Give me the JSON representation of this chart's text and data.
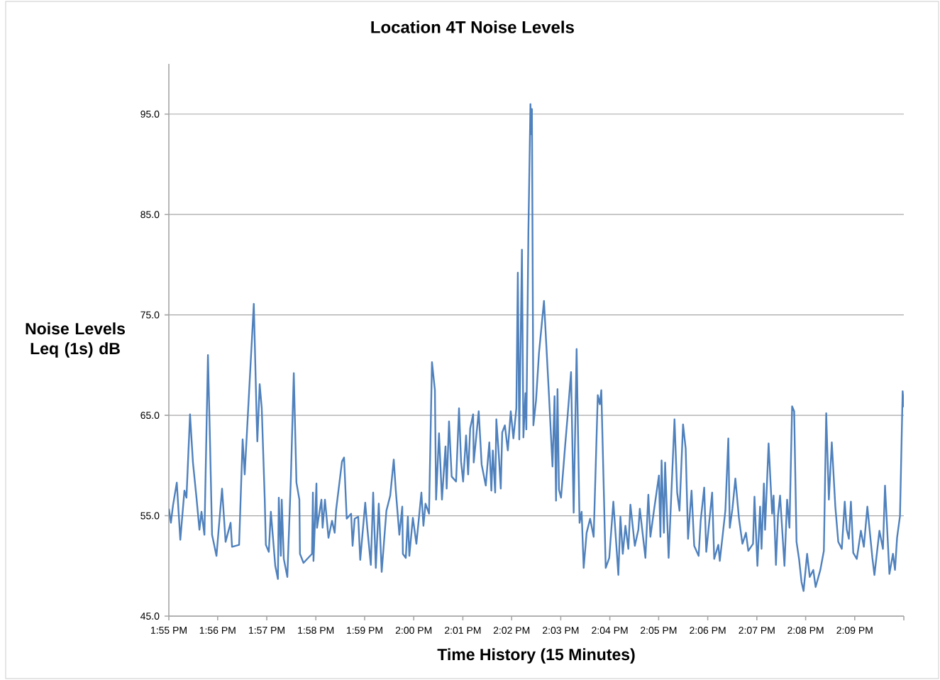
{
  "chart_data": {
    "type": "line",
    "title": "Location 4T Noise Levels",
    "xlabel": "Time History (15 Minutes)",
    "ylabel": "Noise Levels Leq (1s) dB",
    "xlim": [
      13.9167,
      14.1667
    ],
    "ylim": [
      45,
      100
    ],
    "xticks": [
      {
        "value": 13.9167,
        "label": "1:55 PM"
      },
      {
        "value": 13.9333,
        "label": "1:56 PM"
      },
      {
        "value": 13.95,
        "label": "1:57 PM"
      },
      {
        "value": 13.9667,
        "label": "1:58 PM"
      },
      {
        "value": 13.9833,
        "label": "1:59 PM"
      },
      {
        "value": 14.0,
        "label": "2:00 PM"
      },
      {
        "value": 14.0167,
        "label": "2:01 PM"
      },
      {
        "value": 14.0333,
        "label": "2:02 PM"
      },
      {
        "value": 14.05,
        "label": "2:03 PM"
      },
      {
        "value": 14.0667,
        "label": "2:04 PM"
      },
      {
        "value": 14.0833,
        "label": "2:05 PM"
      },
      {
        "value": 14.1,
        "label": "2:06 PM"
      },
      {
        "value": 14.1167,
        "label": "2:07 PM"
      },
      {
        "value": 14.1333,
        "label": "2:08 PM"
      },
      {
        "value": 14.15,
        "label": "2:09 PM"
      },
      {
        "value": 14.1667,
        "label": null
      }
    ],
    "yticks": [
      {
        "value": 45,
        "label": "45.0"
      },
      {
        "value": 55,
        "label": "55.0"
      },
      {
        "value": 65,
        "label": "65.0"
      },
      {
        "value": 75,
        "label": "75.0"
      },
      {
        "value": 85,
        "label": "85.0"
      },
      {
        "value": 95,
        "label": "95.0"
      }
    ],
    "grid": "y",
    "line_style": "solid",
    "series": [
      {
        "color": "#4f81bd",
        "x": [
          13.9167,
          13.9174,
          13.9181,
          13.9194,
          13.9206,
          13.922,
          13.9227,
          13.9239,
          13.9249,
          13.9261,
          13.9271,
          13.9278,
          13.9288,
          13.93,
          13.9307,
          13.9314,
          13.9329,
          13.9348,
          13.936,
          13.9377,
          13.9382,
          13.9406,
          13.9418,
          13.9425,
          13.9437,
          13.9456,
          13.9466,
          13.9468,
          13.9476,
          13.9483,
          13.9493,
          13.9497,
          13.9507,
          13.9514,
          13.9529,
          13.9538,
          13.9541,
          13.9548,
          13.9551,
          13.9558,
          13.957,
          13.9582,
          13.9592,
          13.9601,
          13.9611,
          13.9613,
          13.9625,
          13.9654,
          13.9657,
          13.9659,
          13.9669,
          13.9671,
          13.9686,
          13.969,
          13.9698,
          13.971,
          13.9722,
          13.9731,
          13.9736,
          13.9756,
          13.9763,
          13.9772,
          13.9787,
          13.9792,
          13.9799,
          13.9811,
          13.9818,
          13.9835,
          13.9842,
          13.9854,
          13.9862,
          13.9871,
          13.9881,
          13.9891,
          13.9907,
          13.992,
          13.9932,
          13.9939,
          13.9951,
          13.9961,
          13.9963,
          13.9973,
          13.998,
          13.9985,
          13.9997,
          14.0009,
          14.0026,
          14.0033,
          14.004,
          14.0052,
          14.0062,
          14.0072,
          14.0076,
          14.0086,
          14.0096,
          14.0108,
          14.0112,
          14.012,
          14.0129,
          14.0144,
          14.0154,
          14.0161,
          14.0168,
          14.0178,
          14.0185,
          14.0192,
          14.0202,
          14.0204,
          14.0221,
          14.0231,
          14.0245,
          14.0257,
          14.0264,
          14.0269,
          14.0277,
          14.0281,
          14.0289,
          14.0296,
          14.0301,
          14.031,
          14.032,
          14.033,
          14.0339,
          14.0349,
          14.0354,
          14.0359,
          14.0368,
          14.0373,
          14.038,
          14.0383,
          14.039,
          14.0397,
          14.04,
          14.0402,
          14.0407,
          14.0416,
          14.0426,
          14.0443,
          14.046,
          14.0472,
          14.0479,
          14.0484,
          14.0489,
          14.0494,
          14.0501,
          14.0515,
          14.0523,
          14.0535,
          14.0544,
          14.0554,
          14.0564,
          14.0571,
          14.0578,
          14.0588,
          14.06,
          14.0612,
          14.0626,
          14.0633,
          14.0638,
          14.0653,
          14.0665,
          14.0679,
          14.0696,
          14.0703,
          14.0711,
          14.072,
          14.073,
          14.0737,
          14.0752,
          14.0764,
          14.0769,
          14.0788,
          14.0798,
          14.0805,
          14.0817,
          14.0834,
          14.0839,
          14.0843,
          14.0851,
          14.0855,
          14.0867,
          14.0887,
          14.0896,
          14.0904,
          14.0916,
          14.0925,
          14.0933,
          14.0945,
          14.0954,
          14.0969,
          14.0976,
          14.0988,
          14.0995,
          14.1015,
          14.1022,
          14.1036,
          14.1041,
          14.1051,
          14.106,
          14.107,
          14.1075,
          14.1084,
          14.1094,
          14.1106,
          14.1118,
          14.113,
          14.1138,
          14.1154,
          14.1159,
          14.1169,
          14.1178,
          14.1183,
          14.1191,
          14.1195,
          14.1207,
          14.1219,
          14.1224,
          14.1232,
          14.1239,
          14.1246,
          14.1261,
          14.127,
          14.1278,
          14.1287,
          14.1294,
          14.1302,
          14.1311,
          14.1319,
          14.1326,
          14.1338,
          14.1347,
          14.1359,
          14.1367,
          14.1383,
          14.1395,
          14.1403,
          14.1412,
          14.1422,
          14.1434,
          14.1444,
          14.1456,
          14.1466,
          14.1473,
          14.148,
          14.1487,
          14.1495,
          14.1507,
          14.1521,
          14.1531,
          14.1543,
          14.156,
          14.1567,
          14.1584,
          14.1596,
          14.1603,
          14.1618,
          14.163,
          14.1637,
          14.1644,
          14.1654,
          14.1663,
          14.1667
        ],
        "values": [
          55.7,
          54.3,
          56.0,
          58.3,
          52.6,
          57.5,
          56.8,
          65.1,
          60.3,
          56.8,
          53.6,
          55.4,
          53.1,
          71.0,
          62.4,
          53.1,
          51.0,
          57.7,
          52.4,
          54.3,
          51.9,
          52.1,
          62.6,
          59.1,
          65.7,
          76.1,
          64.3,
          62.4,
          68.1,
          65.7,
          56.8,
          52.1,
          51.4,
          55.4,
          50.0,
          48.7,
          56.8,
          51.0,
          56.6,
          50.7,
          48.9,
          58.7,
          69.2,
          58.3,
          56.6,
          51.2,
          50.3,
          51.2,
          57.3,
          50.5,
          58.2,
          53.8,
          56.6,
          53.8,
          56.6,
          52.8,
          54.5,
          53.3,
          55.6,
          60.4,
          60.8,
          54.7,
          55.2,
          52.0,
          54.7,
          54.9,
          50.6,
          56.3,
          53.8,
          50.1,
          57.3,
          49.8,
          56.2,
          49.4,
          55.5,
          57.0,
          60.6,
          57.5,
          53.1,
          55.9,
          51.2,
          50.8,
          54.9,
          51.0,
          54.8,
          52.2,
          57.3,
          54.0,
          56.2,
          55.2,
          70.3,
          67.5,
          56.6,
          63.2,
          56.6,
          61.9,
          57.7,
          64.4,
          58.9,
          58.4,
          65.7,
          60.4,
          58.4,
          63.0,
          59.1,
          63.7,
          65.1,
          60.3,
          65.4,
          60.1,
          58.0,
          62.3,
          57.5,
          61.5,
          57.3,
          64.6,
          61.2,
          57.7,
          63.3,
          64.0,
          61.5,
          65.4,
          62.7,
          65.7,
          79.2,
          62.6,
          81.5,
          62.8,
          67.2,
          63.6,
          83.3,
          96.0,
          93.0,
          95.5,
          64.0,
          66.5,
          71.2,
          76.4,
          67.0,
          59.9,
          66.9,
          56.5,
          67.6,
          57.6,
          56.8,
          62.0,
          64.8,
          69.3,
          55.3,
          71.6,
          54.3,
          55.4,
          49.8,
          53.3,
          54.7,
          52.9,
          67.0,
          66.1,
          67.5,
          49.8,
          50.8,
          56.4,
          49.1,
          54.9,
          51.2,
          54.0,
          51.7,
          56.1,
          52.0,
          53.6,
          55.7,
          50.8,
          57.1,
          52.9,
          55.5,
          59.0,
          52.9,
          60.5,
          53.3,
          60.3,
          50.8,
          64.6,
          57.3,
          55.5,
          64.1,
          61.7,
          52.7,
          57.5,
          52.0,
          51.0,
          54.5,
          57.8,
          51.4,
          57.3,
          50.7,
          52.1,
          50.5,
          53.1,
          55.5,
          62.7,
          53.8,
          55.7,
          58.7,
          54.8,
          52.2,
          53.3,
          51.5,
          52.2,
          56.9,
          50.0,
          55.9,
          51.7,
          58.2,
          53.6,
          62.2,
          55.2,
          57.0,
          50.1,
          55.0,
          57.0,
          50.0,
          56.6,
          53.8,
          65.9,
          65.4,
          52.4,
          50.6,
          48.4,
          47.5,
          51.2,
          48.9,
          49.6,
          47.9,
          49.6,
          51.5,
          65.2,
          56.6,
          62.3,
          55.9,
          52.4,
          51.7,
          56.4,
          53.6,
          52.7,
          56.4,
          51.3,
          50.7,
          53.5,
          51.9,
          55.9,
          50.8,
          49.1,
          53.5,
          51.7,
          58.0,
          49.2,
          51.2,
          49.6,
          52.8,
          55.0,
          67.4,
          65.8
        ]
      }
    ]
  }
}
